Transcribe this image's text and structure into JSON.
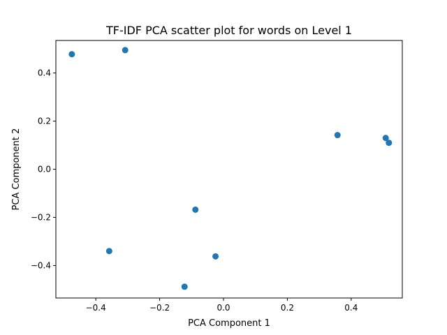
{
  "chart_data": {
    "type": "scatter",
    "title": "TF-IDF PCA scatter plot for words on Level 1",
    "xlabel": "PCA Component 1",
    "ylabel": "PCA Component 2",
    "xlim": [
      -0.525,
      0.56
    ],
    "ylim": [
      -0.535,
      0.535
    ],
    "xticks": [
      -0.4,
      -0.2,
      0.0,
      0.2,
      0.4
    ],
    "yticks": [
      -0.4,
      -0.2,
      0.0,
      0.2,
      0.4
    ],
    "xtick_labels": [
      "−0.4",
      "−0.2",
      "0.0",
      "0.2",
      "0.4"
    ],
    "ytick_labels": [
      "−0.4",
      "−0.2",
      "0.0",
      "0.2",
      "0.4"
    ],
    "grid": false,
    "marker_color": "#1f77b4",
    "series": [
      {
        "x": [
          -0.475,
          -0.308,
          0.357,
          0.508,
          0.518,
          -0.088,
          -0.358,
          -0.025,
          -0.122
        ],
        "y": [
          0.478,
          0.495,
          0.142,
          0.13,
          0.11,
          -0.168,
          -0.34,
          -0.362,
          -0.488
        ]
      }
    ]
  }
}
